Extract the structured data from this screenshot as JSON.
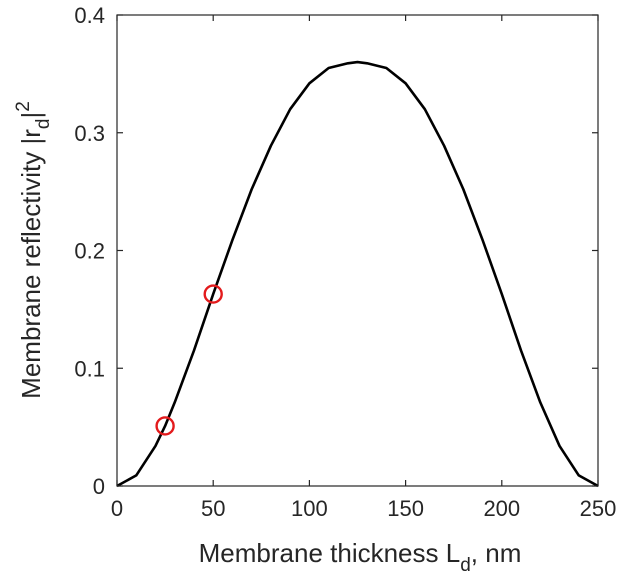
{
  "chart_data": {
    "type": "line",
    "xlabel": {
      "main": "Membrane thickness L",
      "sub": "d",
      "suffix": ", nm"
    },
    "ylabel": {
      "main": "Membrane reflectivity |r",
      "sub": "d",
      "mid": "|",
      "sup": "2"
    },
    "xlim": [
      0,
      250
    ],
    "ylim": [
      0,
      0.4
    ],
    "xticks": [
      0,
      50,
      100,
      150,
      200,
      250
    ],
    "xtick_labels": [
      "0",
      "50",
      "100",
      "150",
      "200",
      "250"
    ],
    "yticks": [
      0,
      0.1,
      0.2,
      0.3,
      0.4
    ],
    "ytick_labels": [
      "0",
      "0.1",
      "0.2",
      "0.3",
      "0.4"
    ],
    "grid": false,
    "box": true,
    "series": [
      {
        "style": "line",
        "color": "#000000",
        "x": [
          0,
          10,
          20,
          25,
          30,
          40,
          50,
          60,
          70,
          80,
          90,
          100,
          110,
          120,
          125,
          130,
          140,
          150,
          160,
          170,
          180,
          190,
          200,
          210,
          220,
          230,
          240,
          250
        ],
        "y": [
          0,
          0.009,
          0.034,
          0.051,
          0.071,
          0.115,
          0.163,
          0.209,
          0.252,
          0.289,
          0.32,
          0.342,
          0.355,
          0.359,
          0.36,
          0.359,
          0.355,
          0.342,
          0.32,
          0.289,
          0.252,
          0.209,
          0.163,
          0.115,
          0.071,
          0.034,
          0.009,
          0
        ]
      },
      {
        "style": "marker",
        "marker": "circle",
        "color": "#e31a1c",
        "x": [
          25,
          50
        ],
        "y": [
          0.051,
          0.163
        ]
      }
    ]
  }
}
